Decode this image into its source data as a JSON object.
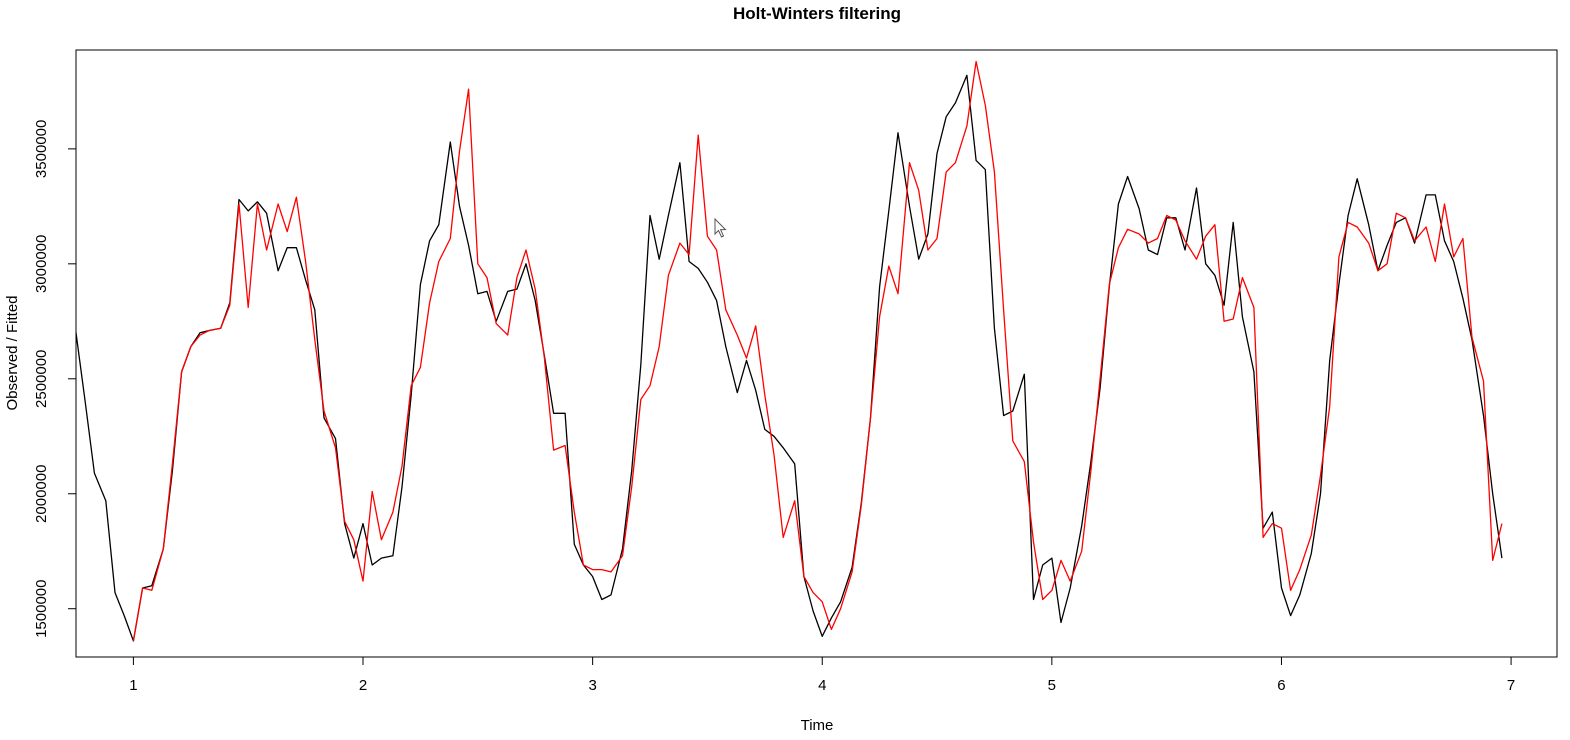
{
  "chart_data": {
    "type": "line",
    "title": "Holt-Winters filtering",
    "xlabel": "Time",
    "ylabel": "Observed / Fitted",
    "xlim": [
      0.75,
      7.2
    ],
    "ylim": [
      1290000,
      3930000
    ],
    "x_ticks": [
      "1",
      "2",
      "3",
      "4",
      "5",
      "6",
      "7"
    ],
    "y_ticks": [
      "1500000",
      "2000000",
      "2500000",
      "3000000",
      "3500000"
    ],
    "grid": false,
    "legend": "none",
    "series": [
      {
        "color": "#000000",
        "points": [
          [
            0.75,
            2700000
          ],
          [
            0.79,
            2400000
          ],
          [
            0.83,
            2090000
          ],
          [
            0.88,
            1970000
          ],
          [
            0.92,
            1570000
          ],
          [
            0.96,
            1470000
          ],
          [
            1.0,
            1360000
          ],
          [
            1.04,
            1590000
          ],
          [
            1.08,
            1600000
          ],
          [
            1.13,
            1760000
          ],
          [
            1.17,
            2100000
          ],
          [
            1.21,
            2530000
          ],
          [
            1.25,
            2640000
          ],
          [
            1.29,
            2700000
          ],
          [
            1.33,
            2710000
          ],
          [
            1.38,
            2720000
          ],
          [
            1.42,
            2830000
          ],
          [
            1.46,
            3280000
          ],
          [
            1.5,
            3230000
          ],
          [
            1.54,
            3270000
          ],
          [
            1.58,
            3220000
          ],
          [
            1.63,
            2970000
          ],
          [
            1.67,
            3070000
          ],
          [
            1.71,
            3070000
          ],
          [
            1.75,
            2930000
          ],
          [
            1.79,
            2800000
          ],
          [
            1.83,
            2330000
          ],
          [
            1.88,
            2240000
          ],
          [
            1.92,
            1870000
          ],
          [
            1.96,
            1720000
          ],
          [
            2.0,
            1870000
          ],
          [
            2.04,
            1690000
          ],
          [
            2.08,
            1720000
          ],
          [
            2.13,
            1730000
          ],
          [
            2.17,
            2030000
          ],
          [
            2.21,
            2430000
          ],
          [
            2.25,
            2910000
          ],
          [
            2.29,
            3100000
          ],
          [
            2.33,
            3170000
          ],
          [
            2.38,
            3530000
          ],
          [
            2.42,
            3250000
          ],
          [
            2.46,
            3080000
          ],
          [
            2.5,
            2870000
          ],
          [
            2.54,
            2880000
          ],
          [
            2.58,
            2750000
          ],
          [
            2.63,
            2880000
          ],
          [
            2.67,
            2890000
          ],
          [
            2.71,
            3000000
          ],
          [
            2.75,
            2840000
          ],
          [
            2.79,
            2600000
          ],
          [
            2.83,
            2350000
          ],
          [
            2.88,
            2350000
          ],
          [
            2.92,
            1780000
          ],
          [
            2.96,
            1690000
          ],
          [
            3.0,
            1640000
          ],
          [
            3.04,
            1540000
          ],
          [
            3.08,
            1560000
          ],
          [
            3.13,
            1760000
          ],
          [
            3.17,
            2100000
          ],
          [
            3.21,
            2560000
          ],
          [
            3.25,
            3210000
          ],
          [
            3.29,
            3020000
          ],
          [
            3.33,
            3210000
          ],
          [
            3.38,
            3440000
          ],
          [
            3.42,
            3010000
          ],
          [
            3.46,
            2980000
          ],
          [
            3.5,
            2920000
          ],
          [
            3.54,
            2840000
          ],
          [
            3.58,
            2640000
          ],
          [
            3.63,
            2440000
          ],
          [
            3.67,
            2580000
          ],
          [
            3.71,
            2450000
          ],
          [
            3.75,
            2280000
          ],
          [
            3.79,
            2250000
          ],
          [
            3.83,
            2200000
          ],
          [
            3.88,
            2130000
          ],
          [
            3.92,
            1640000
          ],
          [
            3.96,
            1490000
          ],
          [
            4.0,
            1380000
          ],
          [
            4.04,
            1460000
          ],
          [
            4.08,
            1530000
          ],
          [
            4.13,
            1680000
          ],
          [
            4.17,
            1960000
          ],
          [
            4.21,
            2330000
          ],
          [
            4.25,
            2900000
          ],
          [
            4.29,
            3230000
          ],
          [
            4.33,
            3570000
          ],
          [
            4.38,
            3250000
          ],
          [
            4.42,
            3020000
          ],
          [
            4.46,
            3130000
          ],
          [
            4.5,
            3480000
          ],
          [
            4.54,
            3640000
          ],
          [
            4.58,
            3700000
          ],
          [
            4.63,
            3820000
          ],
          [
            4.67,
            3450000
          ],
          [
            4.71,
            3410000
          ],
          [
            4.75,
            2720000
          ],
          [
            4.79,
            2340000
          ],
          [
            4.83,
            2360000
          ],
          [
            4.88,
            2520000
          ],
          [
            4.92,
            1540000
          ],
          [
            4.96,
            1690000
          ],
          [
            5.0,
            1720000
          ],
          [
            5.04,
            1440000
          ],
          [
            5.08,
            1590000
          ],
          [
            5.13,
            1860000
          ],
          [
            5.17,
            2140000
          ],
          [
            5.21,
            2460000
          ],
          [
            5.25,
            2900000
          ],
          [
            5.29,
            3260000
          ],
          [
            5.33,
            3380000
          ],
          [
            5.38,
            3240000
          ],
          [
            5.42,
            3060000
          ],
          [
            5.46,
            3040000
          ],
          [
            5.5,
            3200000
          ],
          [
            5.54,
            3200000
          ],
          [
            5.58,
            3060000
          ],
          [
            5.63,
            3330000
          ],
          [
            5.67,
            3000000
          ],
          [
            5.71,
            2950000
          ],
          [
            5.75,
            2820000
          ],
          [
            5.79,
            3180000
          ],
          [
            5.83,
            2770000
          ],
          [
            5.88,
            2530000
          ],
          [
            5.92,
            1850000
          ],
          [
            5.96,
            1920000
          ],
          [
            6.0,
            1590000
          ],
          [
            6.04,
            1470000
          ],
          [
            6.08,
            1560000
          ],
          [
            6.13,
            1740000
          ],
          [
            6.17,
            2000000
          ],
          [
            6.21,
            2580000
          ],
          [
            6.25,
            2910000
          ],
          [
            6.29,
            3210000
          ],
          [
            6.33,
            3370000
          ],
          [
            6.38,
            3170000
          ],
          [
            6.42,
            2970000
          ],
          [
            6.46,
            3080000
          ],
          [
            6.5,
            3180000
          ],
          [
            6.54,
            3200000
          ],
          [
            6.58,
            3090000
          ],
          [
            6.63,
            3300000
          ],
          [
            6.67,
            3300000
          ],
          [
            6.71,
            3100000
          ],
          [
            6.75,
            3010000
          ],
          [
            6.79,
            2850000
          ],
          [
            6.83,
            2670000
          ],
          [
            6.88,
            2340000
          ],
          [
            6.92,
            2000000
          ],
          [
            6.96,
            1720000
          ]
        ]
      },
      {
        "color": "#ff0000",
        "points": [
          [
            1.0,
            1360000
          ],
          [
            1.04,
            1590000
          ],
          [
            1.08,
            1580000
          ],
          [
            1.13,
            1760000
          ],
          [
            1.17,
            2130000
          ],
          [
            1.21,
            2530000
          ],
          [
            1.25,
            2640000
          ],
          [
            1.29,
            2690000
          ],
          [
            1.33,
            2710000
          ],
          [
            1.38,
            2720000
          ],
          [
            1.42,
            2820000
          ],
          [
            1.46,
            3260000
          ],
          [
            1.5,
            2810000
          ],
          [
            1.54,
            3260000
          ],
          [
            1.58,
            3060000
          ],
          [
            1.63,
            3260000
          ],
          [
            1.67,
            3140000
          ],
          [
            1.71,
            3290000
          ],
          [
            1.75,
            3010000
          ],
          [
            1.79,
            2670000
          ],
          [
            1.83,
            2360000
          ],
          [
            1.88,
            2200000
          ],
          [
            1.92,
            1880000
          ],
          [
            1.96,
            1800000
          ],
          [
            2.0,
            1620000
          ],
          [
            2.04,
            2010000
          ],
          [
            2.08,
            1800000
          ],
          [
            2.13,
            1920000
          ],
          [
            2.17,
            2120000
          ],
          [
            2.21,
            2470000
          ],
          [
            2.25,
            2550000
          ],
          [
            2.29,
            2830000
          ],
          [
            2.33,
            3010000
          ],
          [
            2.38,
            3110000
          ],
          [
            2.42,
            3490000
          ],
          [
            2.46,
            3760000
          ],
          [
            2.5,
            3000000
          ],
          [
            2.54,
            2940000
          ],
          [
            2.58,
            2740000
          ],
          [
            2.63,
            2690000
          ],
          [
            2.67,
            2940000
          ],
          [
            2.71,
            3060000
          ],
          [
            2.75,
            2890000
          ],
          [
            2.79,
            2590000
          ],
          [
            2.83,
            2190000
          ],
          [
            2.88,
            2210000
          ],
          [
            2.92,
            1920000
          ],
          [
            2.96,
            1690000
          ],
          [
            3.0,
            1670000
          ],
          [
            3.04,
            1670000
          ],
          [
            3.08,
            1660000
          ],
          [
            3.13,
            1730000
          ],
          [
            3.17,
            2030000
          ],
          [
            3.21,
            2410000
          ],
          [
            3.25,
            2470000
          ],
          [
            3.29,
            2640000
          ],
          [
            3.33,
            2950000
          ],
          [
            3.38,
            3090000
          ],
          [
            3.42,
            3040000
          ],
          [
            3.46,
            3560000
          ],
          [
            3.5,
            3120000
          ],
          [
            3.54,
            3060000
          ],
          [
            3.58,
            2800000
          ],
          [
            3.63,
            2690000
          ],
          [
            3.67,
            2590000
          ],
          [
            3.71,
            2730000
          ],
          [
            3.75,
            2430000
          ],
          [
            3.79,
            2170000
          ],
          [
            3.83,
            1810000
          ],
          [
            3.88,
            1970000
          ],
          [
            3.92,
            1640000
          ],
          [
            3.96,
            1570000
          ],
          [
            4.0,
            1530000
          ],
          [
            4.04,
            1410000
          ],
          [
            4.08,
            1500000
          ],
          [
            4.13,
            1660000
          ],
          [
            4.17,
            1950000
          ],
          [
            4.21,
            2330000
          ],
          [
            4.25,
            2770000
          ],
          [
            4.29,
            2990000
          ],
          [
            4.33,
            2870000
          ],
          [
            4.38,
            3440000
          ],
          [
            4.42,
            3320000
          ],
          [
            4.46,
            3060000
          ],
          [
            4.5,
            3110000
          ],
          [
            4.54,
            3400000
          ],
          [
            4.58,
            3440000
          ],
          [
            4.63,
            3600000
          ],
          [
            4.67,
            3880000
          ],
          [
            4.71,
            3690000
          ],
          [
            4.75,
            3400000
          ],
          [
            4.79,
            2800000
          ],
          [
            4.83,
            2230000
          ],
          [
            4.88,
            2140000
          ],
          [
            4.92,
            1790000
          ],
          [
            4.96,
            1540000
          ],
          [
            5.0,
            1580000
          ],
          [
            5.04,
            1710000
          ],
          [
            5.08,
            1620000
          ],
          [
            5.13,
            1750000
          ],
          [
            5.17,
            2100000
          ],
          [
            5.21,
            2500000
          ],
          [
            5.25,
            2910000
          ],
          [
            5.29,
            3070000
          ],
          [
            5.33,
            3150000
          ],
          [
            5.38,
            3130000
          ],
          [
            5.42,
            3090000
          ],
          [
            5.46,
            3110000
          ],
          [
            5.5,
            3210000
          ],
          [
            5.54,
            3190000
          ],
          [
            5.58,
            3100000
          ],
          [
            5.63,
            3020000
          ],
          [
            5.67,
            3120000
          ],
          [
            5.71,
            3170000
          ],
          [
            5.75,
            2750000
          ],
          [
            5.79,
            2760000
          ],
          [
            5.83,
            2940000
          ],
          [
            5.88,
            2810000
          ],
          [
            5.92,
            1810000
          ],
          [
            5.96,
            1870000
          ],
          [
            6.0,
            1850000
          ],
          [
            6.04,
            1580000
          ],
          [
            6.08,
            1670000
          ],
          [
            6.13,
            1820000
          ],
          [
            6.17,
            2080000
          ],
          [
            6.21,
            2380000
          ],
          [
            6.25,
            3030000
          ],
          [
            6.29,
            3180000
          ],
          [
            6.33,
            3160000
          ],
          [
            6.38,
            3090000
          ],
          [
            6.42,
            2970000
          ],
          [
            6.46,
            3000000
          ],
          [
            6.5,
            3220000
          ],
          [
            6.54,
            3200000
          ],
          [
            6.58,
            3100000
          ],
          [
            6.63,
            3160000
          ],
          [
            6.67,
            3010000
          ],
          [
            6.71,
            3260000
          ],
          [
            6.75,
            3030000
          ],
          [
            6.79,
            3110000
          ],
          [
            6.83,
            2680000
          ],
          [
            6.88,
            2490000
          ],
          [
            6.92,
            1710000
          ],
          [
            6.96,
            1870000
          ]
        ]
      }
    ]
  }
}
